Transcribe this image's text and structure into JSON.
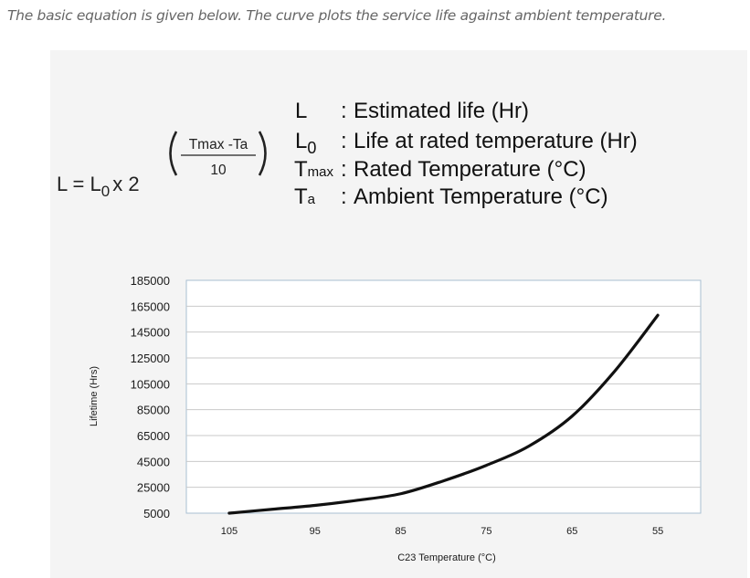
{
  "intro_text": "The basic equation is given below. The curve plots the service life against ambient temperature.",
  "equation": {
    "lhs": "L = L",
    "lhs_sub": "0",
    "times": "x 2",
    "exp_numerator": "Tmax -Ta",
    "exp_denominator": "10"
  },
  "legend": [
    {
      "symbol": "L",
      "sub": "",
      "sep": ":",
      "text": "Estimated life (Hr)"
    },
    {
      "symbol": "L",
      "sub": "0",
      "sep": ":",
      "text": "Life at rated temperature (Hr)"
    },
    {
      "symbol": "T",
      "sub": "max",
      "sep": ":",
      "text": "Rated Temperature (°C)"
    },
    {
      "symbol": "T",
      "sub": "a",
      "sep": ":",
      "text": "Ambient Temperature (°C)"
    }
  ],
  "colors": {
    "panel": "#f4f4f4",
    "plot_bg": "#ffffff",
    "plot_border": "#a9bfd2",
    "grid": "#c9c9c9",
    "curve": "#111111"
  },
  "chart_data": {
    "type": "line",
    "title": "",
    "xlabel": "C23 Temperature (°C)",
    "ylabel": "Lifetime (Hrs)",
    "x_ticks": [
      105,
      95,
      85,
      75,
      65,
      55
    ],
    "y_ticks": [
      185000,
      165000,
      145000,
      125000,
      105000,
      85000,
      65000,
      45000,
      25000,
      5000
    ],
    "xlim": [
      110,
      50
    ],
    "ylim": [
      5000,
      185000
    ],
    "x_reversed": true,
    "grid": "horizontal",
    "series": [
      {
        "values_x": [
          105,
          100,
          95,
          90,
          85,
          80,
          75,
          70,
          65,
          60,
          55
        ],
        "values_y": [
          5000,
          8000,
          11000,
          15000,
          20000,
          30000,
          42000,
          57000,
          80000,
          115000,
          158000
        ]
      }
    ]
  }
}
